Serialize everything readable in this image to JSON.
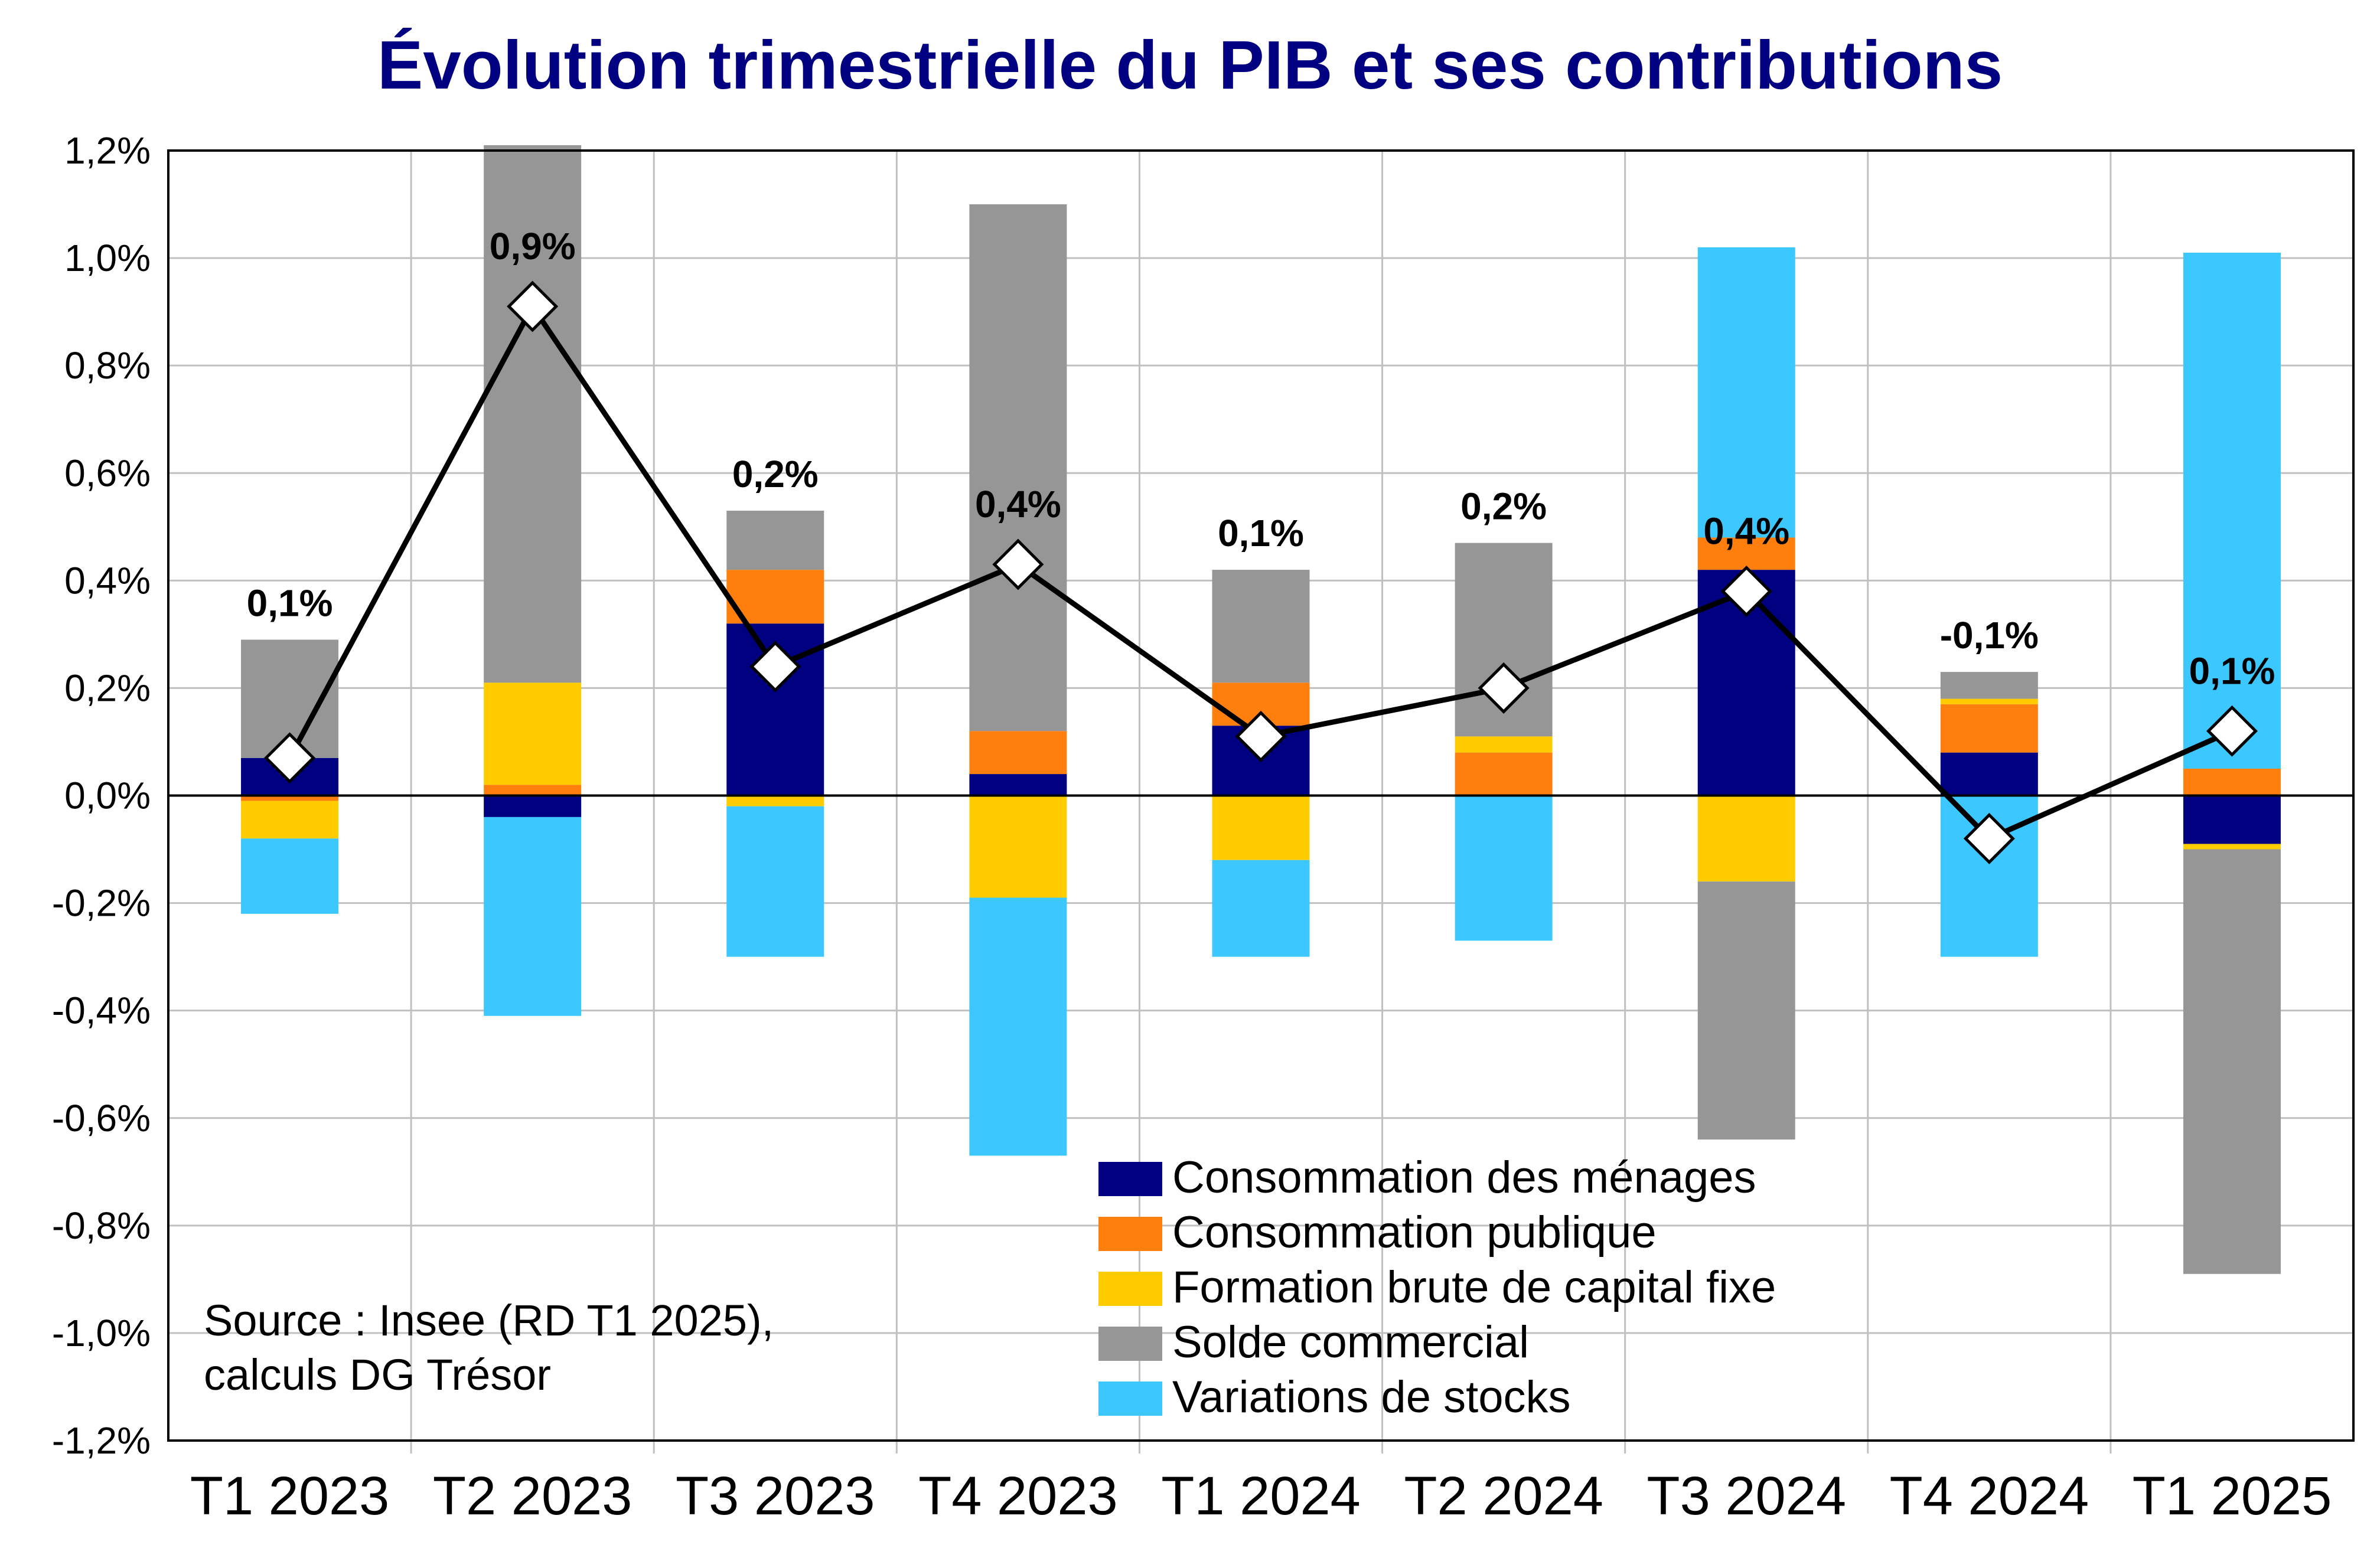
{
  "chart_data": {
    "type": "bar",
    "stacked": true,
    "title": "Évolution trimestrielle du PIB et ses contributions",
    "categories": [
      "T1 2023",
      "T2 2023",
      "T3 2023",
      "T4 2023",
      "T1 2024",
      "T2 2024",
      "T3 2024",
      "T4 2024",
      "T1 2025"
    ],
    "ylim": [
      -1.2,
      1.2
    ],
    "yticks": [
      "1,2%",
      "1,0%",
      "0,8%",
      "0,6%",
      "0,4%",
      "0,2%",
      "0,0%",
      "-0,2%",
      "-0,4%",
      "-0,6%",
      "-0,8%",
      "-1,0%",
      "-1,2%"
    ],
    "grid": true,
    "legend_position": "bottom-center",
    "series": [
      {
        "name": "Consommation des ménages",
        "color": "#000080",
        "values": [
          0.07,
          -0.04,
          0.32,
          0.04,
          0.13,
          0.0,
          0.42,
          0.08,
          -0.09
        ]
      },
      {
        "name": "Consommation publique",
        "color": "#FF7F0E",
        "values": [
          -0.01,
          0.02,
          0.1,
          0.08,
          0.08,
          0.08,
          0.06,
          0.09,
          0.05
        ]
      },
      {
        "name": "Formation brute de capital fixe",
        "color": "#FFCC00",
        "values": [
          -0.07,
          0.19,
          -0.02,
          -0.19,
          -0.12,
          0.03,
          -0.16,
          0.01,
          -0.01
        ]
      },
      {
        "name": "Solde commercial",
        "color": "#969696",
        "values": [
          0.22,
          1.0,
          0.11,
          0.98,
          0.21,
          0.36,
          -0.48,
          0.05,
          -0.79
        ]
      },
      {
        "name": "Variations de stocks",
        "color": "#3CC8FF",
        "values": [
          -0.14,
          -0.37,
          -0.28,
          -0.48,
          -0.18,
          -0.27,
          0.54,
          -0.3,
          0.96
        ]
      }
    ],
    "gdp_line": {
      "values": [
        0.07,
        0.91,
        0.24,
        0.43,
        0.11,
        0.2,
        0.38,
        -0.08,
        0.12
      ],
      "labels": [
        "0,1%",
        "0,9%",
        "0,2%",
        "0,4%",
        "0,1%",
        "0,2%",
        "0,4%",
        "-0,1%",
        "0,1%"
      ]
    },
    "source": [
      "Source : Insee (RD T1 2025),",
      "calculs DG Trésor"
    ]
  }
}
